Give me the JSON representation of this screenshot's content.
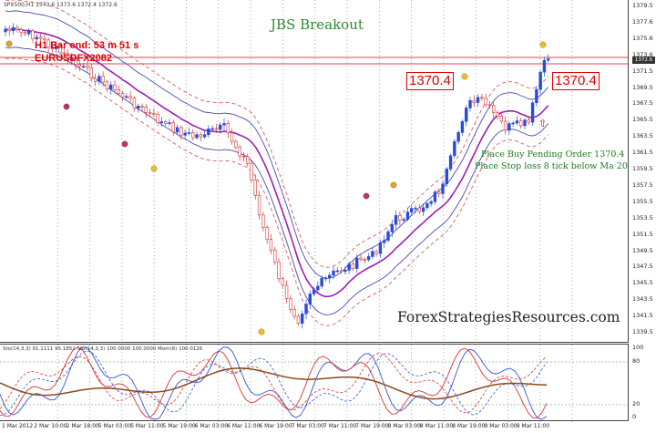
{
  "chart_header": "SPX500,H1  1373.6 1373.6 1372.4 1372.6",
  "title": "JBS Breakout",
  "bar_end_text": "H1 Bar end: 53 m 51 s",
  "symbol_tag": "EURUSDFX2082",
  "price_boxes": [
    "1370.4",
    "1370.4"
  ],
  "instructions": [
    "Place Buy Pending Order 1370.4",
    "Place Stop loss 8 tick below Ma 20"
  ],
  "watermark": "ForexStrategiesResources.com",
  "oscillator_header": "Sto(14,3,3) 91.1111 95.1852  Sto(14,3,3) 100.0000 100.0000  Mom(8) 100.0126",
  "last_price": "1372.6",
  "price_scale": [
    "1379.5",
    "1377.6",
    "1375.6",
    "1373.6",
    "1371.5",
    "1369.5",
    "1367.5",
    "1365.5",
    "1363.5",
    "1361.5",
    "1359.5",
    "1357.5",
    "1355.5",
    "1353.5",
    "1351.5",
    "1349.5",
    "1347.5",
    "1345.5",
    "1343.5",
    "1341.5",
    "1339.5"
  ],
  "osc_scale": [
    "100",
    "80",
    "20",
    "0"
  ],
  "time_labels": [
    "1 Mar 2012",
    "2 Mar 10:00",
    "2 Mar 18:00",
    "5 Mar 03:00",
    "5 Mar 11:00",
    "5 Mar 19:00",
    "6 Mar 03:00",
    "6 Mar 11:00",
    "6 Mar 19:00",
    "7 Mar 03:00",
    "7 Mar 11:00",
    "7 Mar 19:00",
    "8 Mar 03:00",
    "8 Mar 11:00",
    "8 Mar 19:00",
    "9 Mar 03:00",
    "9 Mar 11:00"
  ],
  "colors": {
    "bull_candle": "#2a4bd7",
    "bear_candle": "#d83030",
    "ma_center": "#9b1fb5",
    "band_outer": "#4a4ab0",
    "band_dashed": "#d85a5a",
    "grid": "#9a9a9a",
    "title_green": "#2e8b2e",
    "alert_red": "#e00000",
    "osc_blue": "#3355dd",
    "osc_red": "#dd3333",
    "osc_brown": "#8a4a1a"
  },
  "icons": [
    "fractal-up-marker",
    "fractal-down-marker",
    "signal-arrow-up-icon"
  ]
}
